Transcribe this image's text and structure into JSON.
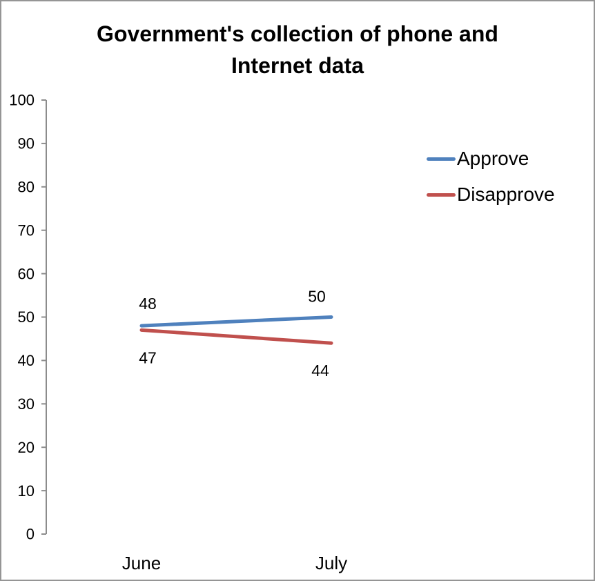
{
  "chart_data": {
    "type": "line",
    "title": "Government's collection of phone and Internet data",
    "categories": [
      "June",
      "July"
    ],
    "series": [
      {
        "name": "Approve",
        "color": "#4F81BD",
        "values": [
          48,
          50
        ],
        "label_position": "above"
      },
      {
        "name": "Disapprove",
        "color": "#C0504D",
        "values": [
          47,
          44
        ],
        "label_position": "below"
      }
    ],
    "ylim": [
      0,
      100
    ],
    "ytick_step": 10,
    "ytick_labels": [
      "0",
      "10",
      "20",
      "30",
      "40",
      "50",
      "60",
      "70",
      "80",
      "90",
      "100"
    ],
    "data_labels": {
      "approve": [
        "48",
        "50"
      ],
      "disapprove": [
        "47",
        "44"
      ]
    },
    "grid": false,
    "legend_position": "right",
    "axis_color": "#8C8C8C",
    "background_color": "#FFFFFF",
    "border_color": "#959595"
  }
}
